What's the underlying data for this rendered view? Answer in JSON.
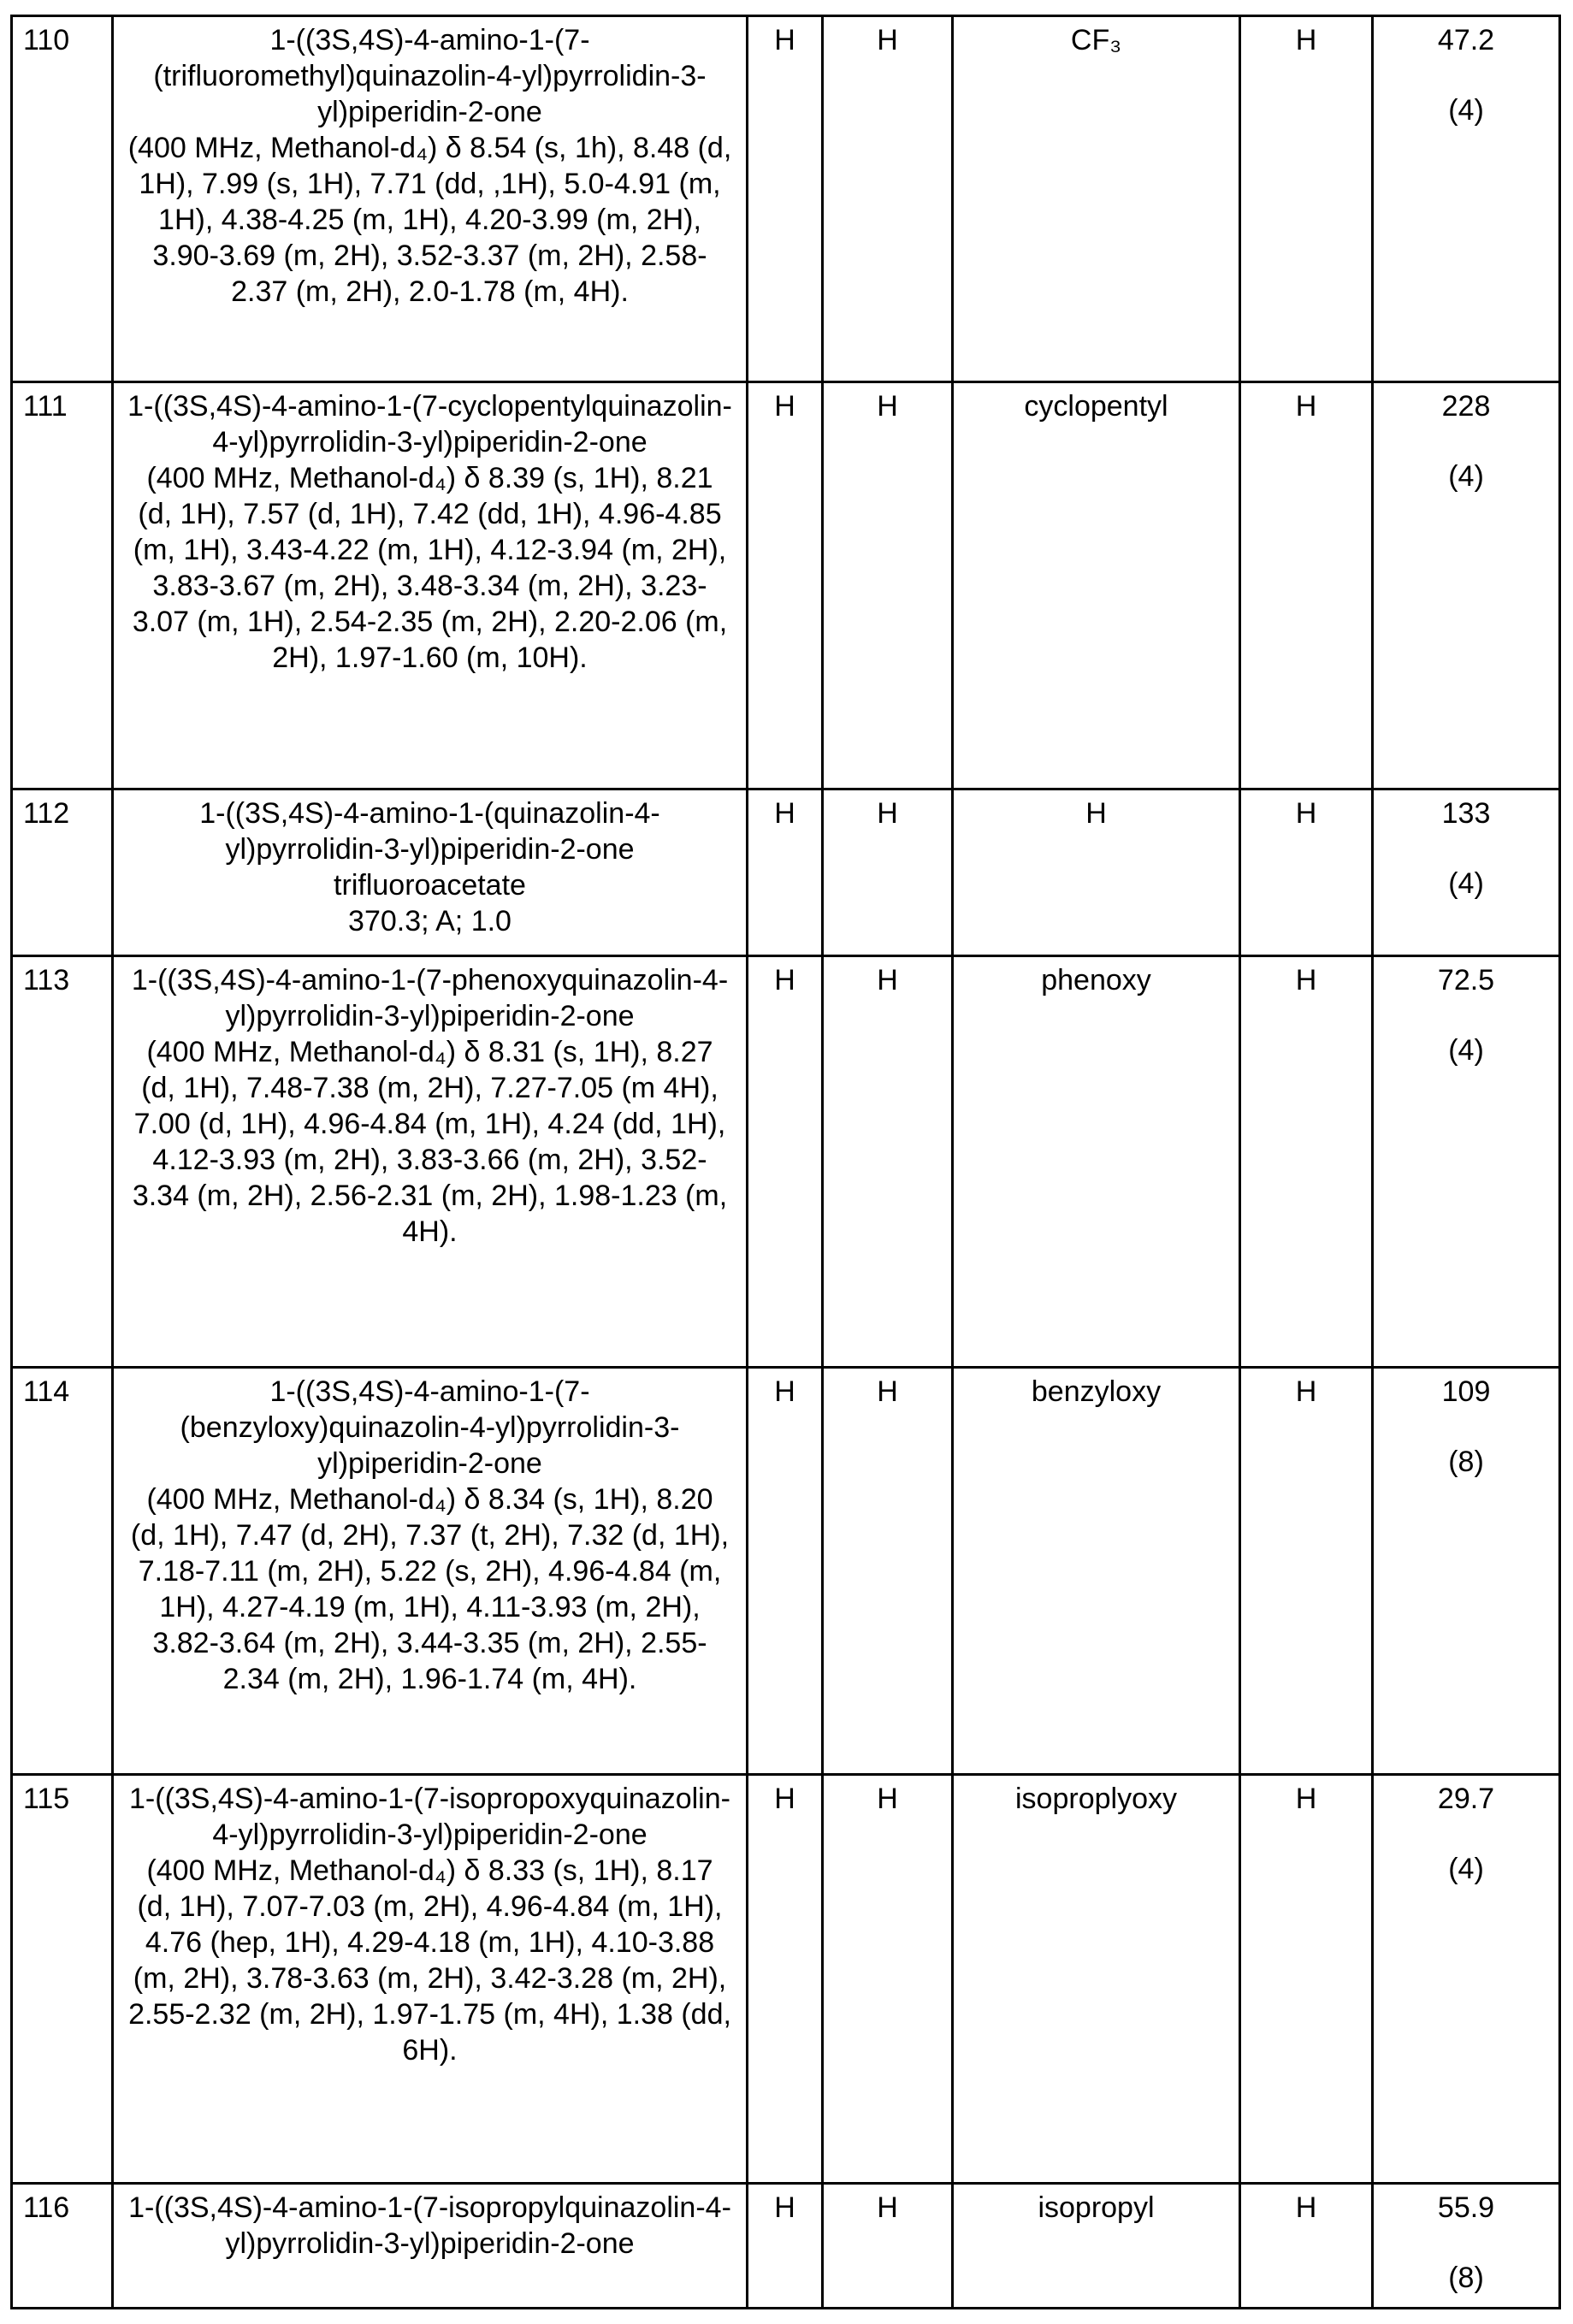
{
  "table": {
    "rows": [
      {
        "id": "110",
        "name": "1-((3S,4S)-4-amino-1-(7-(trifluoromethyl)quinazolin-4-yl)pyrrolidin-3-yl)piperidin-2-one",
        "data": "(400 MHz, Methanol-d₄) δ  8.54 (s, 1h), 8.48 (d, 1H), 7.99 (s, 1H), 7.71 (dd, ,1H), 5.0-4.91 (m, 1H), 4.38-4.25 (m, 1H), 4.20-3.99 (m, 2H), 3.90-3.69 (m, 2H), 3.52-3.37 (m, 2H), 2.58-2.37 (m, 2H), 2.0-1.78 (m, 4H).",
        "r1": "H",
        "r2": "H",
        "r3": "CF₃",
        "r4": "H",
        "value": "47.2",
        "n": "(4)"
      },
      {
        "id": "111",
        "name": "1-((3S,4S)-4-amino-1-(7-cyclopentylquinazolin-4-yl)pyrrolidin-3-yl)piperidin-2-one",
        "data": "(400 MHz, Methanol-d₄) δ  8.39 (s, 1H), 8.21 (d, 1H), 7.57 (d, 1H), 7.42 (dd, 1H), 4.96-4.85 (m, 1H), 3.43-4.22 (m, 1H), 4.12-3.94 (m, 2H), 3.83-3.67 (m, 2H), 3.48-3.34 (m, 2H), 3.23-3.07 (m, 1H), 2.54-2.35 (m, 2H), 2.20-2.06 (m, 2H), 1.97-1.60 (m, 10H).",
        "r1": "H",
        "r2": "H",
        "r3": "cyclopentyl",
        "r4": "H",
        "value": "228",
        "n": "(4)"
      },
      {
        "id": "112",
        "name": "1-((3S,4S)-4-amino-1-(quinazolin-4-yl)pyrrolidin-3-yl)piperidin-2-one trifluoroacetate",
        "data": "370.3; A; 1.0",
        "r1": "H",
        "r2": "H",
        "r3": "H",
        "r4": "H",
        "value": "133",
        "n": "(4)"
      },
      {
        "id": "113",
        "name": "1-((3S,4S)-4-amino-1-(7-phenoxyquinazolin-4-yl)pyrrolidin-3-yl)piperidin-2-one",
        "data": "(400 MHz, Methanol-d₄) δ  8.31 (s, 1H), 8.27 (d, 1H), 7.48-7.38 (m, 2H), 7.27-7.05 (m 4H), 7.00 (d, 1H), 4.96-4.84 (m, 1H), 4.24 (dd, 1H), 4.12-3.93 (m, 2H), 3.83-3.66 (m, 2H), 3.52-3.34 (m, 2H), 2.56-2.31 (m, 2H), 1.98-1.23 (m, 4H).",
        "r1": "H",
        "r2": "H",
        "r3": "phenoxy",
        "r4": "H",
        "value": "72.5",
        "n": "(4)"
      },
      {
        "id": "114",
        "name": "1-((3S,4S)-4-amino-1-(7-(benzyloxy)quinazolin-4-yl)pyrrolidin-3-yl)piperidin-2-one",
        "data": "(400 MHz, Methanol-d₄) δ  8.34 (s, 1H), 8.20 (d, 1H), 7.47 (d, 2H), 7.37 (t, 2H), 7.32 (d, 1H), 7.18-7.11 (m, 2H), 5.22 (s, 2H), 4.96-4.84 (m, 1H), 4.27-4.19 (m, 1H), 4.11-3.93 (m, 2H), 3.82-3.64 (m, 2H), 3.44-3.35 (m, 2H), 2.55-2.34 (m, 2H), 1.96-1.74 (m, 4H).",
        "r1": "H",
        "r2": "H",
        "r3": "benzyloxy",
        "r4": "H",
        "value": "109",
        "n": "(8)"
      },
      {
        "id": "115",
        "name": "1-((3S,4S)-4-amino-1-(7-isopropoxyquinazolin-4-yl)pyrrolidin-3-yl)piperidin-2-one",
        "data": "(400 MHz, Methanol-d₄) δ  8.33 (s, 1H), 8.17 (d, 1H), 7.07-7.03 (m, 2H), 4.96-4.84 (m, 1H), 4.76 (hep, 1H), 4.29-4.18 (m, 1H), 4.10-3.88 (m, 2H), 3.78-3.63 (m, 2H), 3.42-3.28 (m, 2H), 2.55-2.32 (m, 2H), 1.97-1.75 (m, 4H), 1.38 (dd, 6H).",
        "r1": "H",
        "r2": "H",
        "r3": "isoproplyoxy",
        "r4": "H",
        "value": "29.7",
        "n": "(4)"
      },
      {
        "id": "116",
        "name": "1-((3S,4S)-4-amino-1-(7-isopropylquinazolin-4-yl)pyrrolidin-3-yl)piperidin-2-one",
        "data": "",
        "r1": "H",
        "r2": "H",
        "r3": "isopropyl",
        "r4": "H",
        "value": "55.9",
        "n": "(8)"
      }
    ]
  }
}
